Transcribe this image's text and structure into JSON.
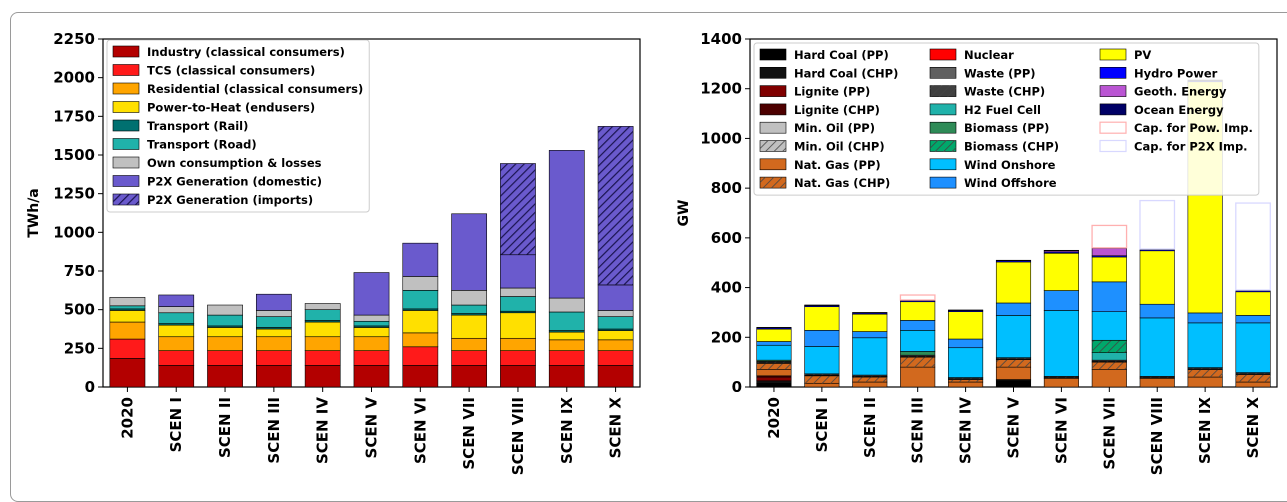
{
  "chart_data": [
    {
      "type": "bar",
      "stacked": true,
      "ylabel": "TWh/a",
      "ylim": [
        0,
        2250
      ],
      "yticks": [
        0,
        250,
        500,
        750,
        1000,
        1250,
        1500,
        1750,
        2000,
        2250
      ],
      "grid": false,
      "legend_position": "top-left",
      "categories": [
        "2020",
        "SCEN I",
        "SCEN II",
        "SCEN III",
        "SCEN IV",
        "SCEN V",
        "SCEN VI",
        "SCEN VII",
        "SCEN VIII",
        "SCEN IX",
        "SCEN X"
      ],
      "series": [
        {
          "name": "Industry (classical consumers)",
          "color": "#b30000",
          "hatch": false,
          "values": [
            185,
            140,
            140,
            140,
            140,
            140,
            140,
            140,
            140,
            140,
            140
          ]
        },
        {
          "name": "TCS (classical consumers)",
          "color": "#ff1a1a",
          "hatch": false,
          "values": [
            125,
            95,
            95,
            95,
            95,
            95,
            120,
            95,
            95,
            95,
            95
          ]
        },
        {
          "name": "Residential (classical consumers)",
          "color": "#ffa500",
          "hatch": false,
          "values": [
            110,
            90,
            90,
            90,
            90,
            90,
            90,
            80,
            80,
            70,
            70
          ]
        },
        {
          "name": "Power-to-Heat (endusers)",
          "color": "#ffe000",
          "hatch": false,
          "values": [
            75,
            75,
            60,
            50,
            95,
            60,
            145,
            150,
            165,
            50,
            60
          ]
        },
        {
          "name": "Transport (Rail)",
          "color": "#007070",
          "hatch": false,
          "values": [
            10,
            10,
            10,
            10,
            10,
            10,
            10,
            10,
            10,
            10,
            10
          ]
        },
        {
          "name": "Transport (Road)",
          "color": "#20b2aa",
          "hatch": false,
          "values": [
            20,
            70,
            70,
            70,
            70,
            30,
            120,
            55,
            95,
            120,
            80
          ]
        },
        {
          "name": "Own consumption & losses",
          "color": "#c0c0c0",
          "hatch": false,
          "values": [
            55,
            40,
            65,
            40,
            40,
            40,
            90,
            95,
            55,
            90,
            40
          ]
        },
        {
          "name": "P2X Generation (domestic)",
          "color": "#6a5acd",
          "hatch": false,
          "values": [
            0,
            75,
            0,
            105,
            0,
            275,
            215,
            495,
            215,
            955,
            165
          ]
        },
        {
          "name": "P2X Generation (imports)",
          "color": "#6a5acd",
          "hatch": true,
          "values": [
            0,
            0,
            0,
            0,
            0,
            0,
            0,
            0,
            590,
            0,
            1025
          ]
        }
      ]
    },
    {
      "type": "bar",
      "stacked": true,
      "ylabel": "GW",
      "ylim": [
        0,
        1400
      ],
      "yticks": [
        0,
        200,
        400,
        600,
        800,
        1000,
        1200,
        1400
      ],
      "grid": false,
      "legend_position": "top",
      "categories": [
        "2020",
        "SCEN I",
        "SCEN II",
        "SCEN III",
        "SCEN IV",
        "SCEN V",
        "SCEN VI",
        "SCEN VII",
        "SCEN VIII",
        "SCEN IX",
        "SCEN X"
      ],
      "series": [
        {
          "name": "Hard Coal (PP)",
          "color": "#000000",
          "hatch": false,
          "values": [
            15,
            0,
            0,
            0,
            0,
            25,
            0,
            0,
            0,
            0,
            0
          ]
        },
        {
          "name": "Hard Coal (CHP)",
          "color": "#111111",
          "hatch": false,
          "values": [
            10,
            0,
            0,
            0,
            0,
            5,
            0,
            0,
            0,
            0,
            0
          ]
        },
        {
          "name": "Lignite (PP)",
          "color": "#800000",
          "hatch": false,
          "values": [
            15,
            0,
            0,
            0,
            0,
            0,
            0,
            0,
            0,
            0,
            0
          ]
        },
        {
          "name": "Lignite (CHP)",
          "color": "#4d0000",
          "hatch": false,
          "values": [
            5,
            0,
            0,
            0,
            0,
            0,
            0,
            0,
            0,
            0,
            0
          ]
        },
        {
          "name": "Min. Oil (PP)",
          "color": "#c0c0c0",
          "hatch": false,
          "values": [
            0,
            0,
            0,
            0,
            0,
            0,
            0,
            0,
            0,
            0,
            0
          ]
        },
        {
          "name": "Min. Oil (CHP)",
          "color": "#c0c0c0",
          "hatch": true,
          "values": [
            0,
            0,
            0,
            0,
            0,
            0,
            0,
            0,
            0,
            0,
            0
          ]
        },
        {
          "name": "Nat. Gas (PP)",
          "color": "#d2691e",
          "hatch": false,
          "values": [
            25,
            15,
            20,
            80,
            20,
            50,
            35,
            70,
            35,
            40,
            20
          ]
        },
        {
          "name": "Nat. Gas (CHP)",
          "color": "#d2691e",
          "hatch": true,
          "values": [
            25,
            30,
            20,
            40,
            10,
            30,
            0,
            30,
            0,
            30,
            30
          ]
        },
        {
          "name": "Nuclear",
          "color": "#ff0000",
          "hatch": false,
          "values": [
            0,
            0,
            0,
            0,
            0,
            0,
            0,
            0,
            0,
            0,
            0
          ]
        },
        {
          "name": "Waste (PP)",
          "color": "#606060",
          "hatch": false,
          "values": [
            3,
            3,
            3,
            3,
            3,
            3,
            3,
            3,
            3,
            3,
            3
          ]
        },
        {
          "name": "Waste (CHP)",
          "color": "#404040",
          "hatch": true,
          "values": [
            5,
            5,
            5,
            5,
            5,
            5,
            5,
            5,
            5,
            5,
            5
          ]
        },
        {
          "name": "H2 Fuel Cell",
          "color": "#20b2aa",
          "hatch": false,
          "values": [
            0,
            0,
            0,
            0,
            0,
            0,
            0,
            30,
            0,
            0,
            0
          ]
        },
        {
          "name": "Biomass (PP)",
          "color": "#2e8b57",
          "hatch": false,
          "values": [
            5,
            0,
            0,
            15,
            0,
            0,
            0,
            0,
            0,
            0,
            0
          ]
        },
        {
          "name": "Biomass (CHP)",
          "color": "#00a86b",
          "hatch": true,
          "values": [
            0,
            0,
            0,
            0,
            0,
            0,
            0,
            50,
            0,
            0,
            0
          ]
        },
        {
          "name": "Wind Onshore",
          "color": "#00bfff",
          "hatch": false,
          "values": [
            60,
            110,
            150,
            85,
            120,
            170,
            265,
            115,
            235,
            180,
            200
          ]
        },
        {
          "name": "Wind Offshore",
          "color": "#1e90ff",
          "hatch": false,
          "values": [
            15,
            65,
            25,
            40,
            35,
            50,
            80,
            120,
            55,
            40,
            30
          ]
        },
        {
          "name": "PV",
          "color": "#ffff00",
          "hatch": false,
          "values": [
            50,
            95,
            70,
            75,
            110,
            165,
            150,
            100,
            215,
            930,
            95
          ]
        },
        {
          "name": "Hydro Power",
          "color": "#0000ff",
          "hatch": false,
          "values": [
            5,
            5,
            5,
            5,
            5,
            5,
            5,
            5,
            5,
            5,
            5
          ]
        },
        {
          "name": "Geoth. Energy",
          "color": "#ba55d3",
          "hatch": false,
          "values": [
            0,
            0,
            0,
            0,
            0,
            0,
            5,
            30,
            0,
            0,
            0
          ]
        },
        {
          "name": "Ocean Energy",
          "color": "#000066",
          "hatch": false,
          "values": [
            2,
            2,
            2,
            2,
            2,
            2,
            2,
            2,
            2,
            2,
            2
          ]
        },
        {
          "name": "Cap. for Pow. Imp.",
          "color": "#ffb0b0",
          "hatch": false,
          "outline_only": true,
          "values": [
            0,
            0,
            0,
            20,
            0,
            0,
            0,
            90,
            0,
            0,
            0
          ]
        },
        {
          "name": "Cap. for P2X Imp.",
          "color": "#d8d8ff",
          "hatch": false,
          "outline_only": true,
          "values": [
            0,
            0,
            0,
            0,
            0,
            0,
            0,
            0,
            195,
            0,
            350
          ]
        }
      ]
    }
  ]
}
